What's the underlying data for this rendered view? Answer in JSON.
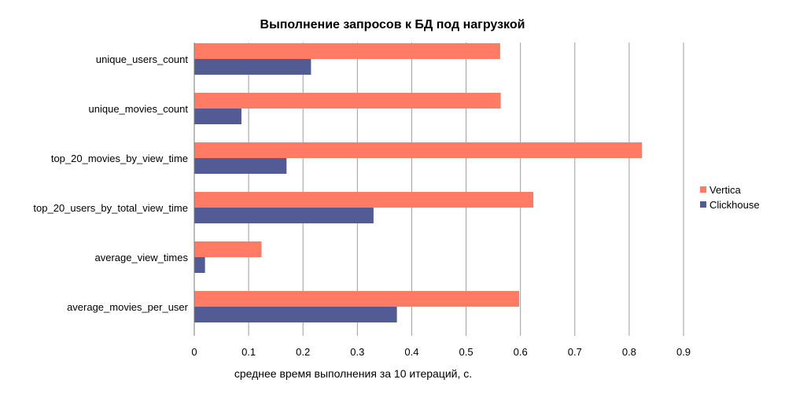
{
  "chart_data": {
    "type": "bar",
    "orientation": "horizontal",
    "title": "Выполнение запросов к БД под нагрузкой",
    "xlabel": "среднее время выполнения за 10 итераций, с.",
    "ylabel": "",
    "xlim": [
      0,
      0.9
    ],
    "xticks": [
      "0",
      "0.1",
      "0.2",
      "0.3",
      "0.4",
      "0.5",
      "0.6",
      "0.7",
      "0.8",
      "0.9"
    ],
    "grid": "vertical",
    "legend_position": "right",
    "categories": [
      "unique_users_count",
      "unique_movies_count",
      "top_20_movies_by_view_time",
      "top_20_users_by_total_view_time",
      "average_view_times",
      "average_movies_per_user"
    ],
    "series": [
      {
        "name": "Vertica",
        "color": "#ff7b63",
        "values": [
          0.562,
          0.563,
          0.823,
          0.623,
          0.123,
          0.597
        ]
      },
      {
        "name": "Clickhouse",
        "color": "#525b93",
        "values": [
          0.214,
          0.086,
          0.169,
          0.329,
          0.019,
          0.372
        ]
      }
    ]
  }
}
